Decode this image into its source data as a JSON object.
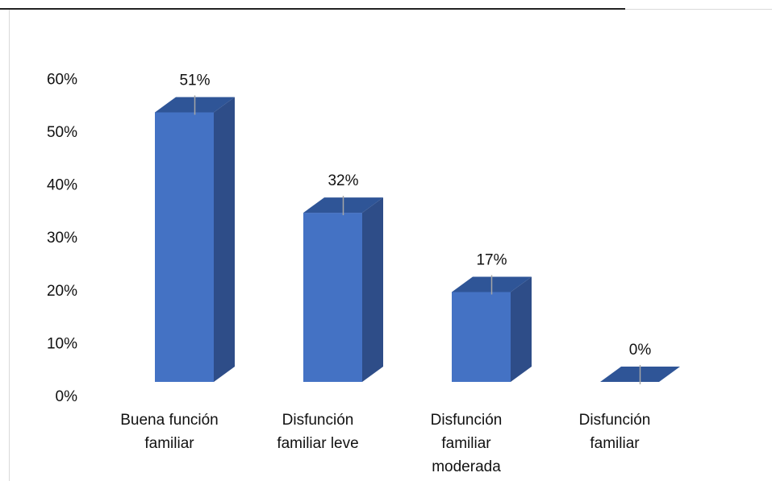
{
  "chart_data": {
    "type": "bar",
    "title": "",
    "xlabel": "",
    "ylabel": "",
    "three_d": true,
    "categories": [
      [
        "Buena función",
        "familiar"
      ],
      [
        "Disfunción",
        "familiar leve"
      ],
      [
        "Disfunción",
        "familiar",
        "moderada"
      ],
      [
        "Disfunción",
        "familiar"
      ]
    ],
    "values": [
      51,
      32,
      17,
      0
    ],
    "data_labels": [
      "51%",
      "32%",
      "17%",
      "0%"
    ],
    "ylim": [
      0,
      60
    ],
    "yticks": [
      "0%",
      "10%",
      "20%",
      "30%",
      "40%",
      "50%",
      "60%"
    ],
    "grid": false,
    "legend": "none",
    "colors": {
      "front": "#4472C4",
      "side": "#2E4D88",
      "top": "#2F5597",
      "leader": "#A6A6A6"
    }
  }
}
